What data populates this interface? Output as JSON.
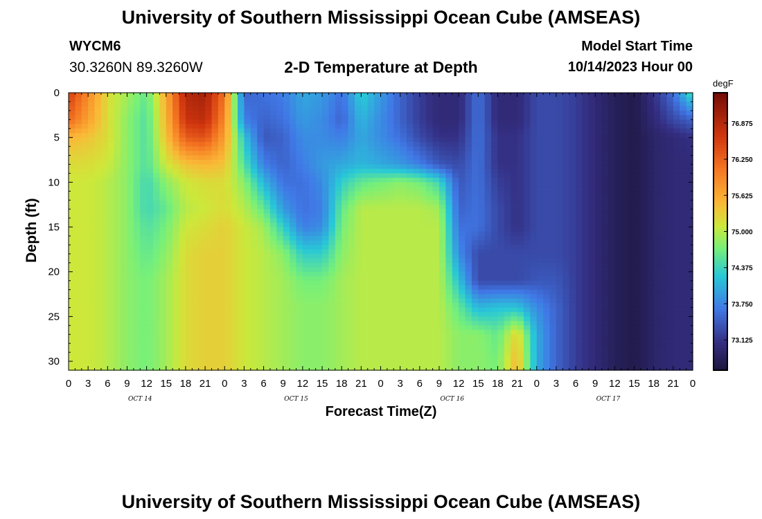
{
  "header": {
    "title": "University of Southern Mississippi Ocean Cube (AMSEAS)",
    "station": "WYCM6",
    "coords": "30.3260N  89.3260W",
    "subtitle": "2-D Temperature at Depth",
    "start_label": "Model Start Time",
    "start_value": "10/14/2023 Hour 00"
  },
  "footer": {
    "title": "University of Southern Mississippi Ocean Cube (AMSEAS)"
  },
  "chart_data": {
    "type": "heatmap",
    "title": "2-D Temperature at Depth",
    "xlabel": "Forecast Time(Z)",
    "ylabel": "Depth (ft)",
    "units": "degF",
    "x_range_hours": [
      0,
      96
    ],
    "y_range_ft": [
      0,
      31
    ],
    "y_inverted": true,
    "x_tick_labels": [
      "0",
      "3",
      "6",
      "9",
      "12",
      "15",
      "18",
      "21",
      "0",
      "3",
      "6",
      "9",
      "12",
      "15",
      "18",
      "21",
      "0",
      "3",
      "6",
      "9",
      "12",
      "15",
      "18",
      "21",
      "0",
      "3",
      "6",
      "9",
      "12",
      "15",
      "18",
      "21",
      "0"
    ],
    "x_day_labels": [
      {
        "label": "OCT 14",
        "hour": 11
      },
      {
        "label": "OCT 15",
        "hour": 35
      },
      {
        "label": "OCT 16",
        "hour": 59
      },
      {
        "label": "OCT 17",
        "hour": 83
      }
    ],
    "y_ticks": [
      0,
      5,
      10,
      15,
      20,
      25,
      30
    ],
    "colorbar": {
      "min": 72.6,
      "max": 77.4,
      "tick_values": [
        73.125,
        73.75,
        74.375,
        75.0,
        75.625,
        76.25,
        76.875
      ],
      "tick_labels": [
        "73.125",
        "73.750",
        "74.375",
        "75.000",
        "75.625",
        "76.250",
        "76.875"
      ]
    },
    "depths_ft": [
      0,
      3,
      5,
      8,
      10,
      13,
      15,
      18,
      21,
      24,
      27,
      30,
      31
    ],
    "hours": [
      0,
      3,
      6,
      9,
      12,
      15,
      18,
      21,
      24,
      27,
      30,
      33,
      36,
      39,
      42,
      45,
      48,
      51,
      54,
      57,
      60,
      63,
      66,
      69,
      72,
      75,
      78,
      81,
      84,
      87,
      90,
      93,
      96
    ],
    "temperature_degF": [
      [
        76.6,
        75.9,
        75.2,
        74.9,
        74.6,
        75.6,
        76.9,
        77.0,
        76.1,
        73.5,
        73.6,
        73.7,
        74.0,
        73.9,
        73.6,
        74.3,
        73.9,
        73.5,
        73.2,
        73.0,
        73.0,
        73.6,
        73.0,
        73.0,
        73.3,
        73.3,
        73.2,
        73.0,
        72.8,
        72.7,
        73.1,
        73.6,
        74.5
      ],
      [
        76.2,
        75.7,
        75.2,
        74.8,
        74.5,
        75.5,
        76.7,
        76.8,
        75.9,
        73.7,
        73.5,
        73.6,
        73.9,
        73.8,
        73.5,
        74.1,
        73.8,
        73.5,
        73.2,
        73.0,
        73.0,
        73.6,
        73.0,
        73.0,
        73.3,
        73.3,
        73.2,
        73.0,
        72.8,
        72.7,
        73.0,
        73.3,
        73.5
      ],
      [
        75.5,
        75.4,
        75.2,
        74.8,
        74.5,
        75.4,
        76.3,
        76.4,
        75.7,
        74.2,
        73.4,
        73.5,
        73.8,
        73.8,
        73.7,
        74.0,
        73.8,
        73.6,
        73.3,
        73.1,
        73.1,
        73.6,
        73.1,
        73.1,
        73.3,
        73.3,
        73.2,
        73.0,
        72.8,
        72.7,
        72.9,
        73.0,
        73.1
      ],
      [
        75.2,
        75.2,
        75.1,
        74.8,
        74.5,
        75.1,
        75.4,
        75.5,
        75.4,
        74.5,
        73.7,
        73.5,
        73.7,
        73.9,
        74.0,
        74.1,
        74.0,
        73.9,
        73.7,
        73.4,
        73.3,
        73.6,
        73.1,
        73.1,
        73.3,
        73.3,
        73.2,
        73.0,
        72.8,
        72.7,
        72.9,
        73.0,
        73.0
      ],
      [
        75.1,
        75.1,
        75.0,
        74.8,
        74.4,
        74.8,
        75.1,
        75.2,
        75.2,
        74.8,
        74.1,
        73.6,
        73.6,
        73.8,
        74.3,
        74.6,
        74.7,
        74.8,
        74.7,
        74.4,
        73.4,
        73.6,
        73.2,
        73.1,
        73.3,
        73.3,
        73.2,
        73.0,
        72.8,
        72.7,
        72.9,
        73.0,
        73.0
      ],
      [
        75.1,
        75.1,
        75.0,
        74.8,
        74.4,
        74.6,
        75.0,
        75.1,
        75.2,
        75.0,
        74.6,
        73.9,
        73.6,
        73.7,
        74.6,
        75.0,
        75.0,
        75.0,
        75.0,
        74.9,
        73.5,
        73.6,
        73.3,
        73.1,
        73.3,
        73.3,
        73.2,
        73.0,
        72.8,
        72.7,
        72.9,
        73.0,
        73.0
      ],
      [
        75.1,
        75.1,
        75.0,
        74.8,
        74.5,
        74.7,
        75.1,
        75.2,
        75.3,
        75.1,
        74.9,
        74.3,
        73.7,
        73.8,
        74.7,
        75.0,
        75.0,
        75.0,
        75.0,
        75.0,
        73.6,
        73.6,
        73.3,
        73.1,
        73.3,
        73.3,
        73.2,
        73.0,
        72.8,
        72.7,
        72.9,
        73.0,
        73.0
      ],
      [
        75.1,
        75.1,
        75.0,
        74.8,
        74.6,
        74.8,
        75.2,
        75.3,
        75.3,
        75.1,
        75.0,
        74.8,
        74.3,
        74.3,
        74.8,
        75.0,
        75.0,
        75.0,
        75.0,
        75.0,
        73.8,
        73.3,
        73.3,
        73.3,
        73.3,
        73.3,
        73.2,
        73.0,
        72.8,
        72.7,
        72.9,
        73.0,
        73.0
      ],
      [
        75.1,
        75.1,
        75.0,
        74.8,
        74.7,
        74.9,
        75.2,
        75.3,
        75.3,
        75.1,
        75.0,
        74.9,
        74.7,
        74.7,
        74.9,
        75.0,
        75.0,
        75.0,
        75.0,
        75.0,
        74.2,
        73.3,
        73.3,
        73.3,
        73.4,
        73.4,
        73.2,
        73.0,
        72.8,
        72.7,
        72.9,
        73.0,
        73.0
      ],
      [
        75.1,
        75.1,
        75.0,
        74.8,
        74.7,
        74.9,
        75.2,
        75.3,
        75.3,
        75.1,
        75.0,
        74.9,
        74.8,
        74.8,
        74.9,
        75.0,
        75.0,
        75.0,
        75.0,
        75.0,
        74.6,
        74.1,
        74.2,
        74.2,
        73.8,
        73.5,
        73.2,
        73.0,
        72.8,
        72.7,
        72.9,
        73.0,
        73.0
      ],
      [
        75.1,
        75.1,
        75.0,
        74.8,
        74.7,
        74.9,
        75.2,
        75.3,
        75.3,
        75.1,
        75.0,
        74.9,
        74.8,
        74.8,
        74.9,
        75.0,
        75.0,
        75.0,
        75.0,
        75.0,
        74.8,
        74.8,
        74.6,
        75.3,
        74.0,
        73.5,
        73.2,
        73.0,
        72.8,
        72.7,
        72.9,
        73.0,
        73.0
      ],
      [
        75.1,
        75.1,
        75.0,
        74.8,
        74.7,
        74.9,
        75.2,
        75.3,
        75.3,
        75.1,
        75.0,
        74.9,
        74.8,
        74.8,
        74.9,
        75.0,
        75.0,
        75.0,
        75.0,
        75.0,
        74.8,
        74.8,
        74.7,
        75.5,
        74.0,
        73.5,
        73.2,
        73.0,
        72.8,
        72.7,
        72.9,
        73.0,
        73.0
      ],
      [
        75.1,
        75.1,
        75.0,
        74.8,
        74.7,
        74.9,
        75.2,
        75.3,
        75.3,
        75.1,
        75.0,
        74.9,
        74.8,
        74.8,
        74.9,
        75.0,
        75.0,
        75.0,
        75.0,
        75.0,
        74.8,
        74.8,
        74.7,
        75.5,
        74.0,
        73.5,
        73.2,
        73.0,
        72.8,
        72.7,
        72.9,
        73.0,
        73.0
      ]
    ]
  }
}
